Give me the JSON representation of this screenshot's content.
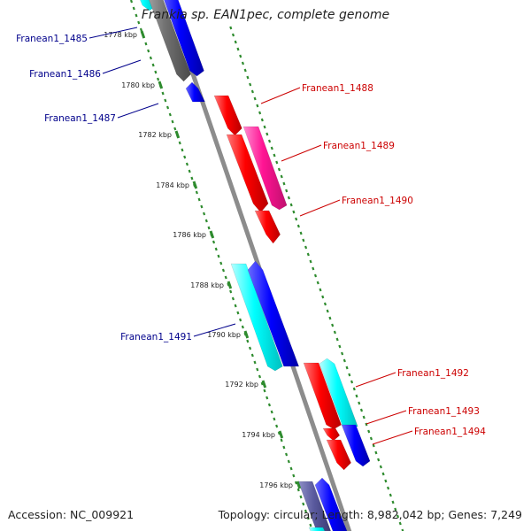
{
  "title": "Frankia sp. EAN1pec, complete genome",
  "footer": {
    "accession": "Accession: NC_009921",
    "topology": "Topology: circular; Length: 8,982,042 bp; Genes: 7,249"
  },
  "colors": {
    "backbone": "#8c8c8c",
    "dots": "#2e8b2e",
    "left_label": "#00008b",
    "right_label": "#cc0000"
  },
  "ticks": [
    {
      "label": "1778 kbp"
    },
    {
      "label": "1780 kbp"
    },
    {
      "label": "1782 kbp"
    },
    {
      "label": "1784 kbp"
    },
    {
      "label": "1786 kbp"
    },
    {
      "label": "1788 kbp"
    },
    {
      "label": "1790 kbp"
    },
    {
      "label": "1792 kbp"
    },
    {
      "label": "1794 kbp"
    },
    {
      "label": "1796 kbp"
    }
  ],
  "left_labels": [
    {
      "label": "Franean1_1485"
    },
    {
      "label": "Franean1_1486"
    },
    {
      "label": "Franean1_1487"
    },
    {
      "label": "Franean1_1491"
    }
  ],
  "right_labels": [
    {
      "label": "Franean1_1488"
    },
    {
      "label": "Franean1_1489"
    },
    {
      "label": "Franean1_1490"
    },
    {
      "label": "Franean1_1492"
    },
    {
      "label": "Franean1_1493"
    },
    {
      "label": "Franean1_1494"
    }
  ]
}
